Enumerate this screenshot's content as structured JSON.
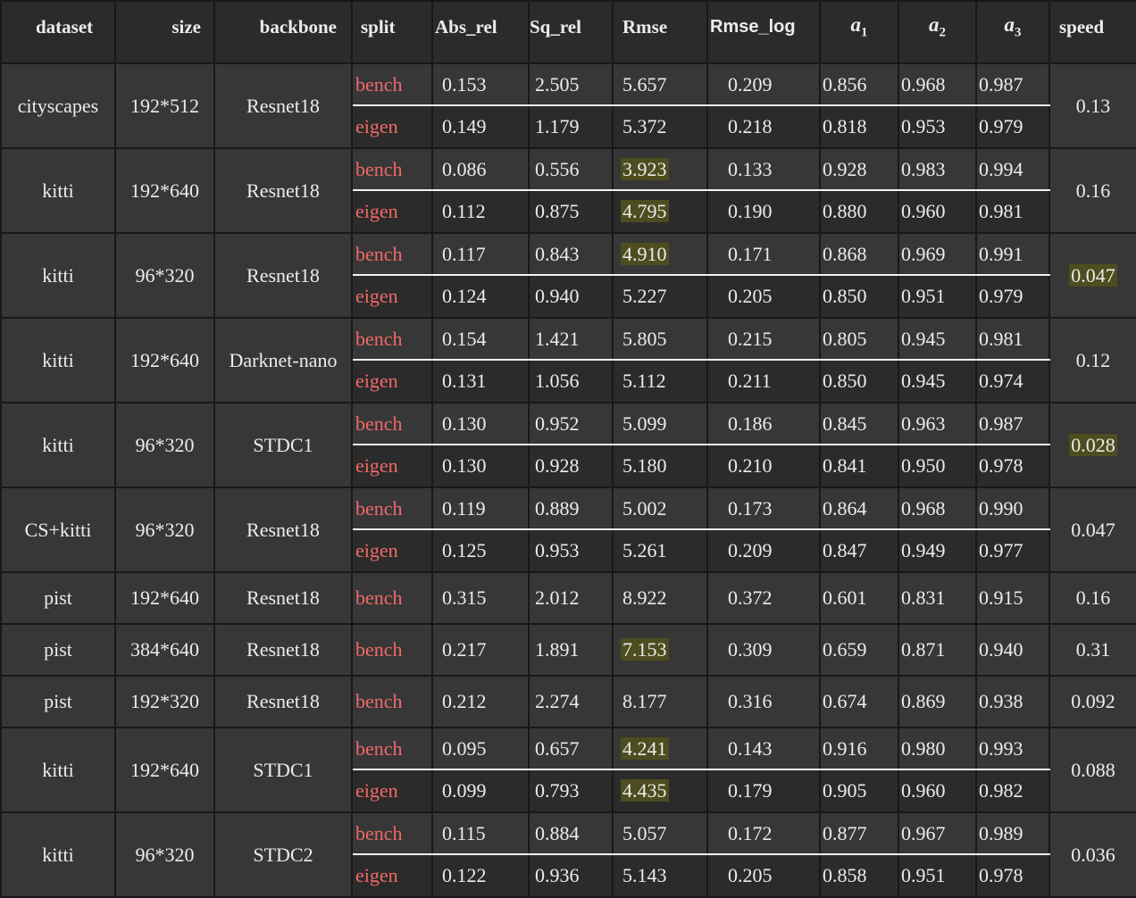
{
  "columns": [
    "dataset",
    "size",
    "backbone",
    "split",
    "Abs_rel",
    "Sq_rel",
    "Rmse",
    "Rmse_log",
    "a1",
    "a2",
    "a3",
    "speed"
  ],
  "alpha_symbol": "a",
  "alpha_subs": [
    "1",
    "2",
    "3"
  ],
  "highlight_color": "#4d4d1f",
  "split_color": "#ef6a67",
  "rows": [
    {
      "dataset": "cityscapes",
      "size": "192*512",
      "backbone": "Resnet18",
      "speed": "0.13",
      "speed_hl": false,
      "splits": [
        {
          "split": "bench",
          "vals": [
            "0.153",
            "2.505",
            "5.657",
            "0.209",
            "0.856",
            "0.968",
            "0.987"
          ],
          "hl": []
        },
        {
          "split": "eigen",
          "vals": [
            "0.149",
            "1.179",
            "5.372",
            "0.218",
            "0.818",
            "0.953",
            "0.979"
          ],
          "hl": []
        }
      ]
    },
    {
      "dataset": "kitti",
      "size": "192*640",
      "backbone": "Resnet18",
      "speed": "0.16",
      "speed_hl": false,
      "splits": [
        {
          "split": "bench",
          "vals": [
            "0.086",
            "0.556",
            "3.923",
            "0.133",
            "0.928",
            "0.983",
            "0.994"
          ],
          "hl": [
            2
          ]
        },
        {
          "split": "eigen",
          "vals": [
            "0.112",
            "0.875",
            "4.795",
            "0.190",
            "0.880",
            "0.960",
            "0.981"
          ],
          "hl": [
            2
          ]
        }
      ]
    },
    {
      "dataset": "kitti",
      "size": "96*320",
      "backbone": "Resnet18",
      "speed": "0.047",
      "speed_hl": true,
      "splits": [
        {
          "split": "bench",
          "vals": [
            "0.117",
            "0.843",
            "4.910",
            "0.171",
            "0.868",
            "0.969",
            "0.991"
          ],
          "hl": [
            2
          ]
        },
        {
          "split": "eigen",
          "vals": [
            "0.124",
            "0.940",
            "5.227",
            "0.205",
            "0.850",
            "0.951",
            "0.979"
          ],
          "hl": []
        }
      ]
    },
    {
      "dataset": "kitti",
      "size": "192*640",
      "backbone": "Darknet-nano",
      "speed": "0.12",
      "speed_hl": false,
      "splits": [
        {
          "split": "bench",
          "vals": [
            "0.154",
            "1.421",
            "5.805",
            "0.215",
            "0.805",
            "0.945",
            "0.981"
          ],
          "hl": []
        },
        {
          "split": "eigen",
          "vals": [
            "0.131",
            "1.056",
            "5.112",
            "0.211",
            "0.850",
            "0.945",
            "0.974"
          ],
          "hl": []
        }
      ]
    },
    {
      "dataset": "kitti",
      "size": "96*320",
      "backbone": "STDC1",
      "speed": "0.028",
      "speed_hl": true,
      "splits": [
        {
          "split": "bench",
          "vals": [
            "0.130",
            "0.952",
            "5.099",
            "0.186",
            "0.845",
            "0.963",
            "0.987"
          ],
          "hl": []
        },
        {
          "split": "eigen",
          "vals": [
            "0.130",
            "0.928",
            "5.180",
            "0.210",
            "0.841",
            "0.950",
            "0.978"
          ],
          "hl": []
        }
      ]
    },
    {
      "dataset": "CS+kitti",
      "size": "96*320",
      "backbone": "Resnet18",
      "speed": "0.047",
      "speed_hl": false,
      "splits": [
        {
          "split": "bench",
          "vals": [
            "0.119",
            "0.889",
            "5.002",
            "0.173",
            "0.864",
            "0.968",
            "0.990"
          ],
          "hl": []
        },
        {
          "split": "eigen",
          "vals": [
            "0.125",
            "0.953",
            "5.261",
            "0.209",
            "0.847",
            "0.949",
            "0.977"
          ],
          "hl": []
        }
      ]
    },
    {
      "dataset": "pist",
      "size": "192*640",
      "backbone": "Resnet18",
      "speed": "0.16",
      "speed_hl": false,
      "splits": [
        {
          "split": "bench",
          "vals": [
            "0.315",
            "2.012",
            "8.922",
            "0.372",
            "0.601",
            "0.831",
            "0.915"
          ],
          "hl": []
        }
      ]
    },
    {
      "dataset": "pist",
      "size": "384*640",
      "backbone": "Resnet18",
      "speed": "0.31",
      "speed_hl": false,
      "splits": [
        {
          "split": "bench",
          "vals": [
            "0.217",
            "1.891",
            "7.153",
            "0.309",
            "0.659",
            "0.871",
            "0.940"
          ],
          "hl": [
            2
          ]
        }
      ]
    },
    {
      "dataset": "pist",
      "size": "192*320",
      "backbone": "Resnet18",
      "speed": "0.092",
      "speed_hl": false,
      "splits": [
        {
          "split": "bench",
          "vals": [
            "0.212",
            "2.274",
            "8.177",
            "0.316",
            "0.674",
            "0.869",
            "0.938"
          ],
          "hl": []
        }
      ]
    },
    {
      "dataset": "kitti",
      "size": "192*640",
      "backbone": "STDC1",
      "speed": "0.088",
      "speed_hl": false,
      "splits": [
        {
          "split": "bench",
          "vals": [
            "0.095",
            "0.657",
            "4.241",
            "0.143",
            "0.916",
            "0.980",
            "0.993"
          ],
          "hl": [
            2
          ]
        },
        {
          "split": "eigen",
          "vals": [
            "0.099",
            "0.793",
            "4.435",
            "0.179",
            "0.905",
            "0.960",
            "0.982"
          ],
          "hl": [
            2
          ]
        }
      ]
    },
    {
      "dataset": "kitti",
      "size": "96*320",
      "backbone": "STDC2",
      "speed": "0.036",
      "speed_hl": false,
      "splits": [
        {
          "split": "bench",
          "vals": [
            "0.115",
            "0.884",
            "5.057",
            "0.172",
            "0.877",
            "0.967",
            "0.989"
          ],
          "hl": []
        },
        {
          "split": "eigen",
          "vals": [
            "0.122",
            "0.936",
            "5.143",
            "0.205",
            "0.858",
            "0.951",
            "0.978"
          ],
          "hl": []
        }
      ]
    }
  ]
}
